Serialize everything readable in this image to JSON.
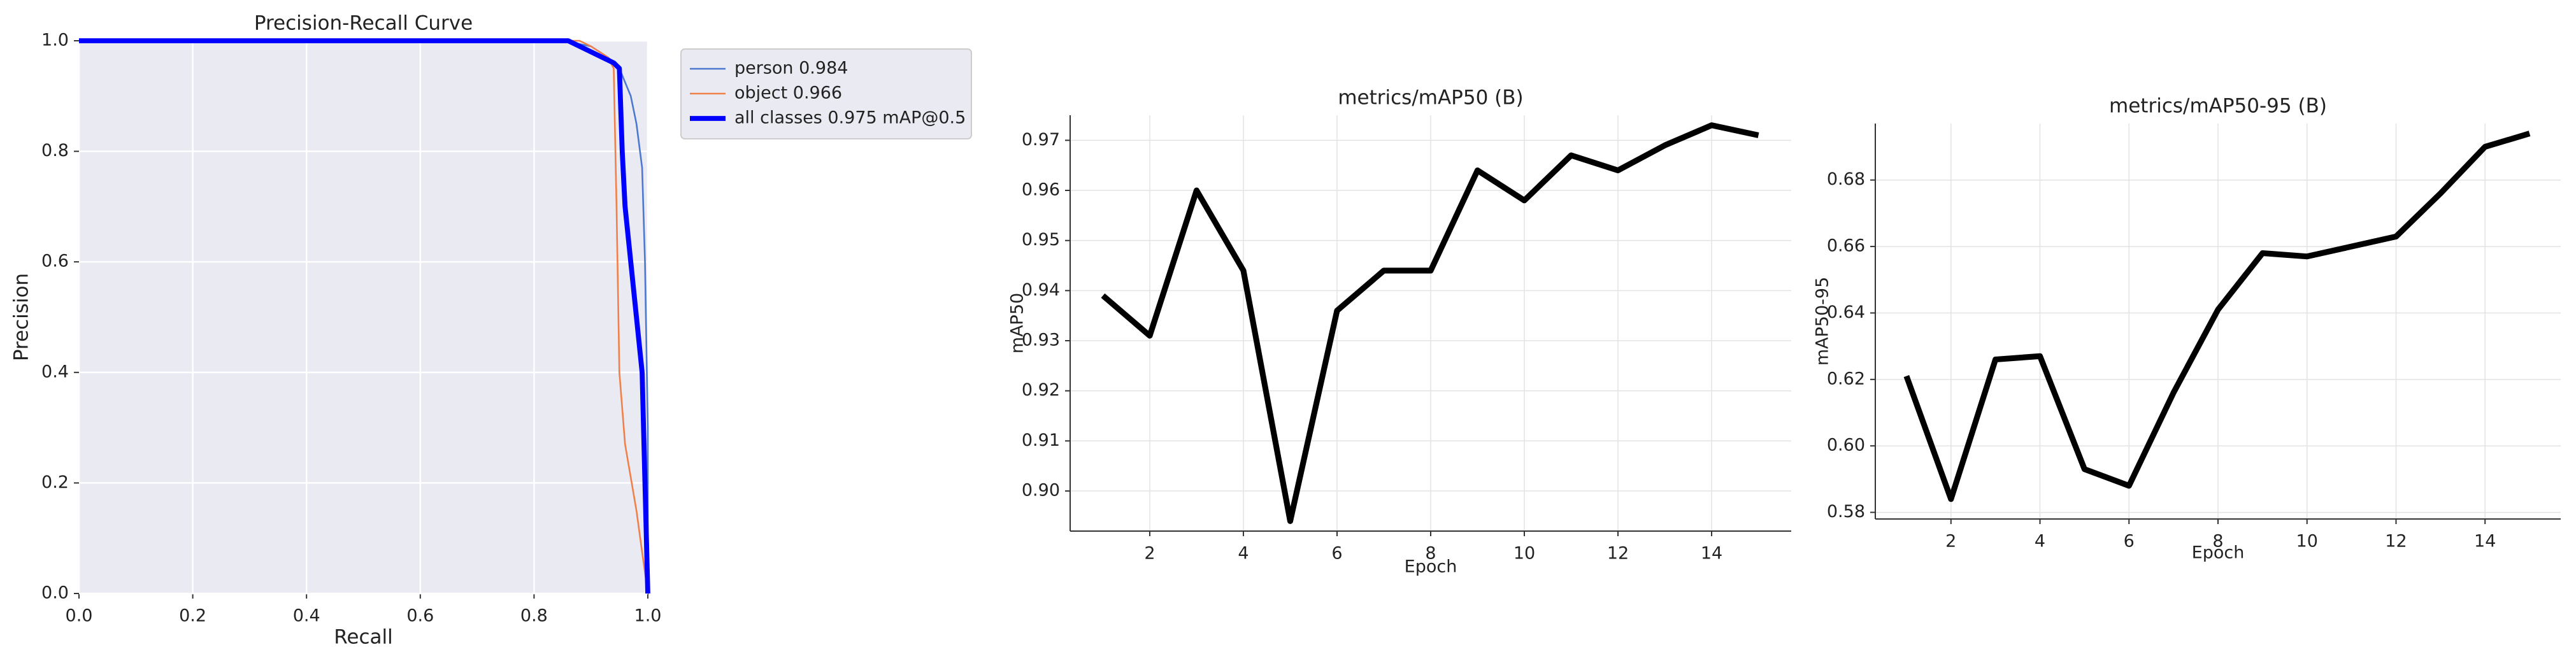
{
  "chart_data": [
    {
      "type": "line",
      "title": "Precision-Recall Curve",
      "xlabel": "Recall",
      "ylabel": "Precision",
      "xlim": [
        0,
        1
      ],
      "ylim": [
        0,
        1
      ],
      "xticks": [
        {
          "value": 0,
          "label": "0.0"
        },
        {
          "value": 0.2,
          "label": "0.2"
        },
        {
          "value": 0.4,
          "label": "0.4"
        },
        {
          "value": 0.6,
          "label": "0.6"
        },
        {
          "value": 0.8,
          "label": "0.8"
        },
        {
          "value": 1,
          "label": "1.0"
        }
      ],
      "yticks": [
        {
          "value": 0,
          "label": "0.0"
        },
        {
          "value": 0.2,
          "label": "0.2"
        },
        {
          "value": 0.4,
          "label": "0.4"
        },
        {
          "value": 0.6,
          "label": "0.6"
        },
        {
          "value": 0.8,
          "label": "0.8"
        },
        {
          "value": 1,
          "label": "1.0"
        }
      ],
      "grid": true,
      "background": "#eaeaf2",
      "legend": "outside-upper-right",
      "series": [
        {
          "name": "person 0.984",
          "color": "#4c78d0",
          "width": 1,
          "x": [
            0,
            0.85,
            0.9,
            0.93,
            0.95,
            0.97,
            0.98,
            0.99,
            0.995,
            1.0,
            1.0
          ],
          "values": [
            1,
            1,
            0.99,
            0.97,
            0.95,
            0.9,
            0.85,
            0.77,
            0.6,
            0.3,
            0
          ]
        },
        {
          "name": "object 0.966",
          "color": "#f0804a",
          "width": 1,
          "x": [
            0,
            0.88,
            0.9,
            0.93,
            0.94,
            0.945,
            0.95,
            0.96,
            0.98,
            1.0
          ],
          "values": [
            1,
            1,
            0.99,
            0.97,
            0.95,
            0.7,
            0.4,
            0.27,
            0.15,
            0
          ]
        },
        {
          "name": "all classes 0.975 mAP@0.5",
          "color": "#0000ff",
          "width": 3,
          "x": [
            0,
            0.86,
            0.9,
            0.94,
            0.95,
            0.955,
            0.96,
            0.97,
            0.98,
            0.99,
            0.995,
            1.0
          ],
          "values": [
            1,
            1,
            0.98,
            0.96,
            0.95,
            0.8,
            0.7,
            0.6,
            0.5,
            0.4,
            0.2,
            0
          ]
        }
      ]
    },
    {
      "type": "line",
      "title": "metrics/mAP50 (B)",
      "xlabel": "Epoch",
      "ylabel": "mAP50",
      "x": [
        1,
        2,
        3,
        4,
        5,
        6,
        7,
        8,
        9,
        10,
        11,
        12,
        13,
        14,
        15
      ],
      "values": [
        0.939,
        0.931,
        0.96,
        0.944,
        0.894,
        0.936,
        0.944,
        0.944,
        0.964,
        0.958,
        0.967,
        0.964,
        0.969,
        0.973,
        0.971
      ],
      "color": "#000000",
      "xlim": [
        0.3,
        15.7
      ],
      "ylim": [
        0.892,
        0.975
      ],
      "xticks": [
        2,
        4,
        6,
        8,
        10,
        12,
        14
      ],
      "yticks": [
        {
          "value": 0.9,
          "label": "0.90"
        },
        0.91,
        0.92,
        0.93,
        0.94,
        0.95,
        0.96,
        0.97
      ],
      "grid": true
    },
    {
      "type": "line",
      "title": "metrics/mAP50-95 (B)",
      "xlabel": "Epoch",
      "ylabel": "mAP50-95",
      "x": [
        1,
        2,
        3,
        4,
        5,
        6,
        7,
        8,
        9,
        10,
        11,
        12,
        13,
        14,
        15
      ],
      "values": [
        0.621,
        0.584,
        0.626,
        0.627,
        0.593,
        0.588,
        0.616,
        0.641,
        0.658,
        0.657,
        0.66,
        0.663,
        0.676,
        0.69,
        0.694
      ],
      "color": "#000000",
      "xlim": [
        0.3,
        15.7
      ],
      "ylim": [
        0.578,
        0.697
      ],
      "xticks": [
        2,
        4,
        6,
        8,
        10,
        12,
        14
      ],
      "yticks": [
        0.58,
        {
          "value": 0.6,
          "label": "0.60"
        },
        0.62,
        0.64,
        0.66,
        0.68
      ],
      "grid": true
    }
  ]
}
